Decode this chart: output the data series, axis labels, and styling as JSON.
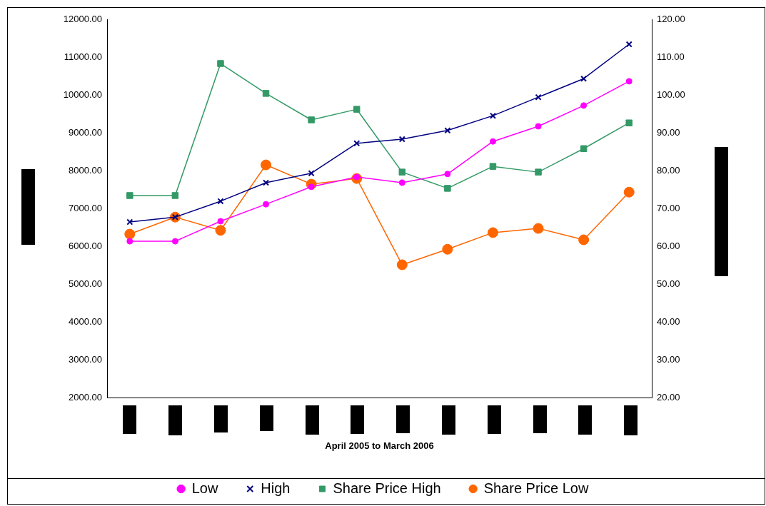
{
  "chart_data": {
    "type": "line",
    "xlabel": "April 2005 to March 2006",
    "categories": [
      null,
      null,
      null,
      null,
      null,
      null,
      null,
      null,
      null,
      null,
      null,
      null
    ],
    "series": [
      {
        "name": "Low",
        "color": "#ff00ff",
        "marker": "circle",
        "values": [
          6130,
          6130,
          6660,
          7110,
          7570,
          7830,
          7680,
          7910,
          8770,
          9170,
          9720,
          10360
        ]
      },
      {
        "name": "High",
        "color": "#000080",
        "marker": "cross",
        "values": [
          6640,
          6770,
          7190,
          7680,
          7930,
          8720,
          8830,
          9060,
          9450,
          9940,
          10430,
          11340
        ]
      },
      {
        "name": "Share Price High",
        "color": "#339966",
        "marker": "square",
        "axis": "y2",
        "values": [
          73.4,
          73.4,
          108.3,
          100.4,
          93.4,
          96.2,
          79.6,
          75.3,
          81.1,
          79.6,
          85.8,
          92.6
        ]
      },
      {
        "name": "Share Price Low",
        "color": "#ff6600",
        "marker": "circle",
        "axis": "y2",
        "values": [
          63.2,
          67.7,
          64.2,
          81.5,
          76.4,
          77.9,
          55.1,
          59.2,
          63.6,
          64.7,
          61.7,
          74.3
        ]
      }
    ],
    "ylim": [
      2000,
      12000
    ],
    "yticks": [
      {
        "value": 2000,
        "label": "2000.00"
      },
      {
        "value": 3000,
        "label": "3000.00"
      },
      {
        "value": 4000,
        "label": "4000.00"
      },
      {
        "value": 5000,
        "label": "5000.00"
      },
      {
        "value": 6000,
        "label": "6000.00"
      },
      {
        "value": 7000,
        "label": "7000.00"
      },
      {
        "value": 8000,
        "label": "8000.00"
      },
      {
        "value": 9000,
        "label": "9000.00"
      },
      {
        "value": 10000,
        "label": "10000.00"
      },
      {
        "value": 11000,
        "label": "11000.00"
      },
      {
        "value": 12000,
        "label": "12000.00"
      }
    ],
    "y2lim": [
      20,
      120
    ],
    "y2ticks": [
      {
        "value": 20,
        "label": "20.00"
      },
      {
        "value": 30,
        "label": "30.00"
      },
      {
        "value": 40,
        "label": "40.00"
      },
      {
        "value": 50,
        "label": "50.00"
      },
      {
        "value": 60,
        "label": "60.00"
      },
      {
        "value": 70,
        "label": "70.00"
      },
      {
        "value": 80,
        "label": "80.00"
      },
      {
        "value": 90,
        "label": "90.00"
      },
      {
        "value": 100,
        "label": "100.00"
      },
      {
        "value": 110,
        "label": "110.00"
      },
      {
        "value": 120,
        "label": "120.00"
      }
    ],
    "grid": false,
    "legend": "bottom",
    "line_style": "solid"
  }
}
